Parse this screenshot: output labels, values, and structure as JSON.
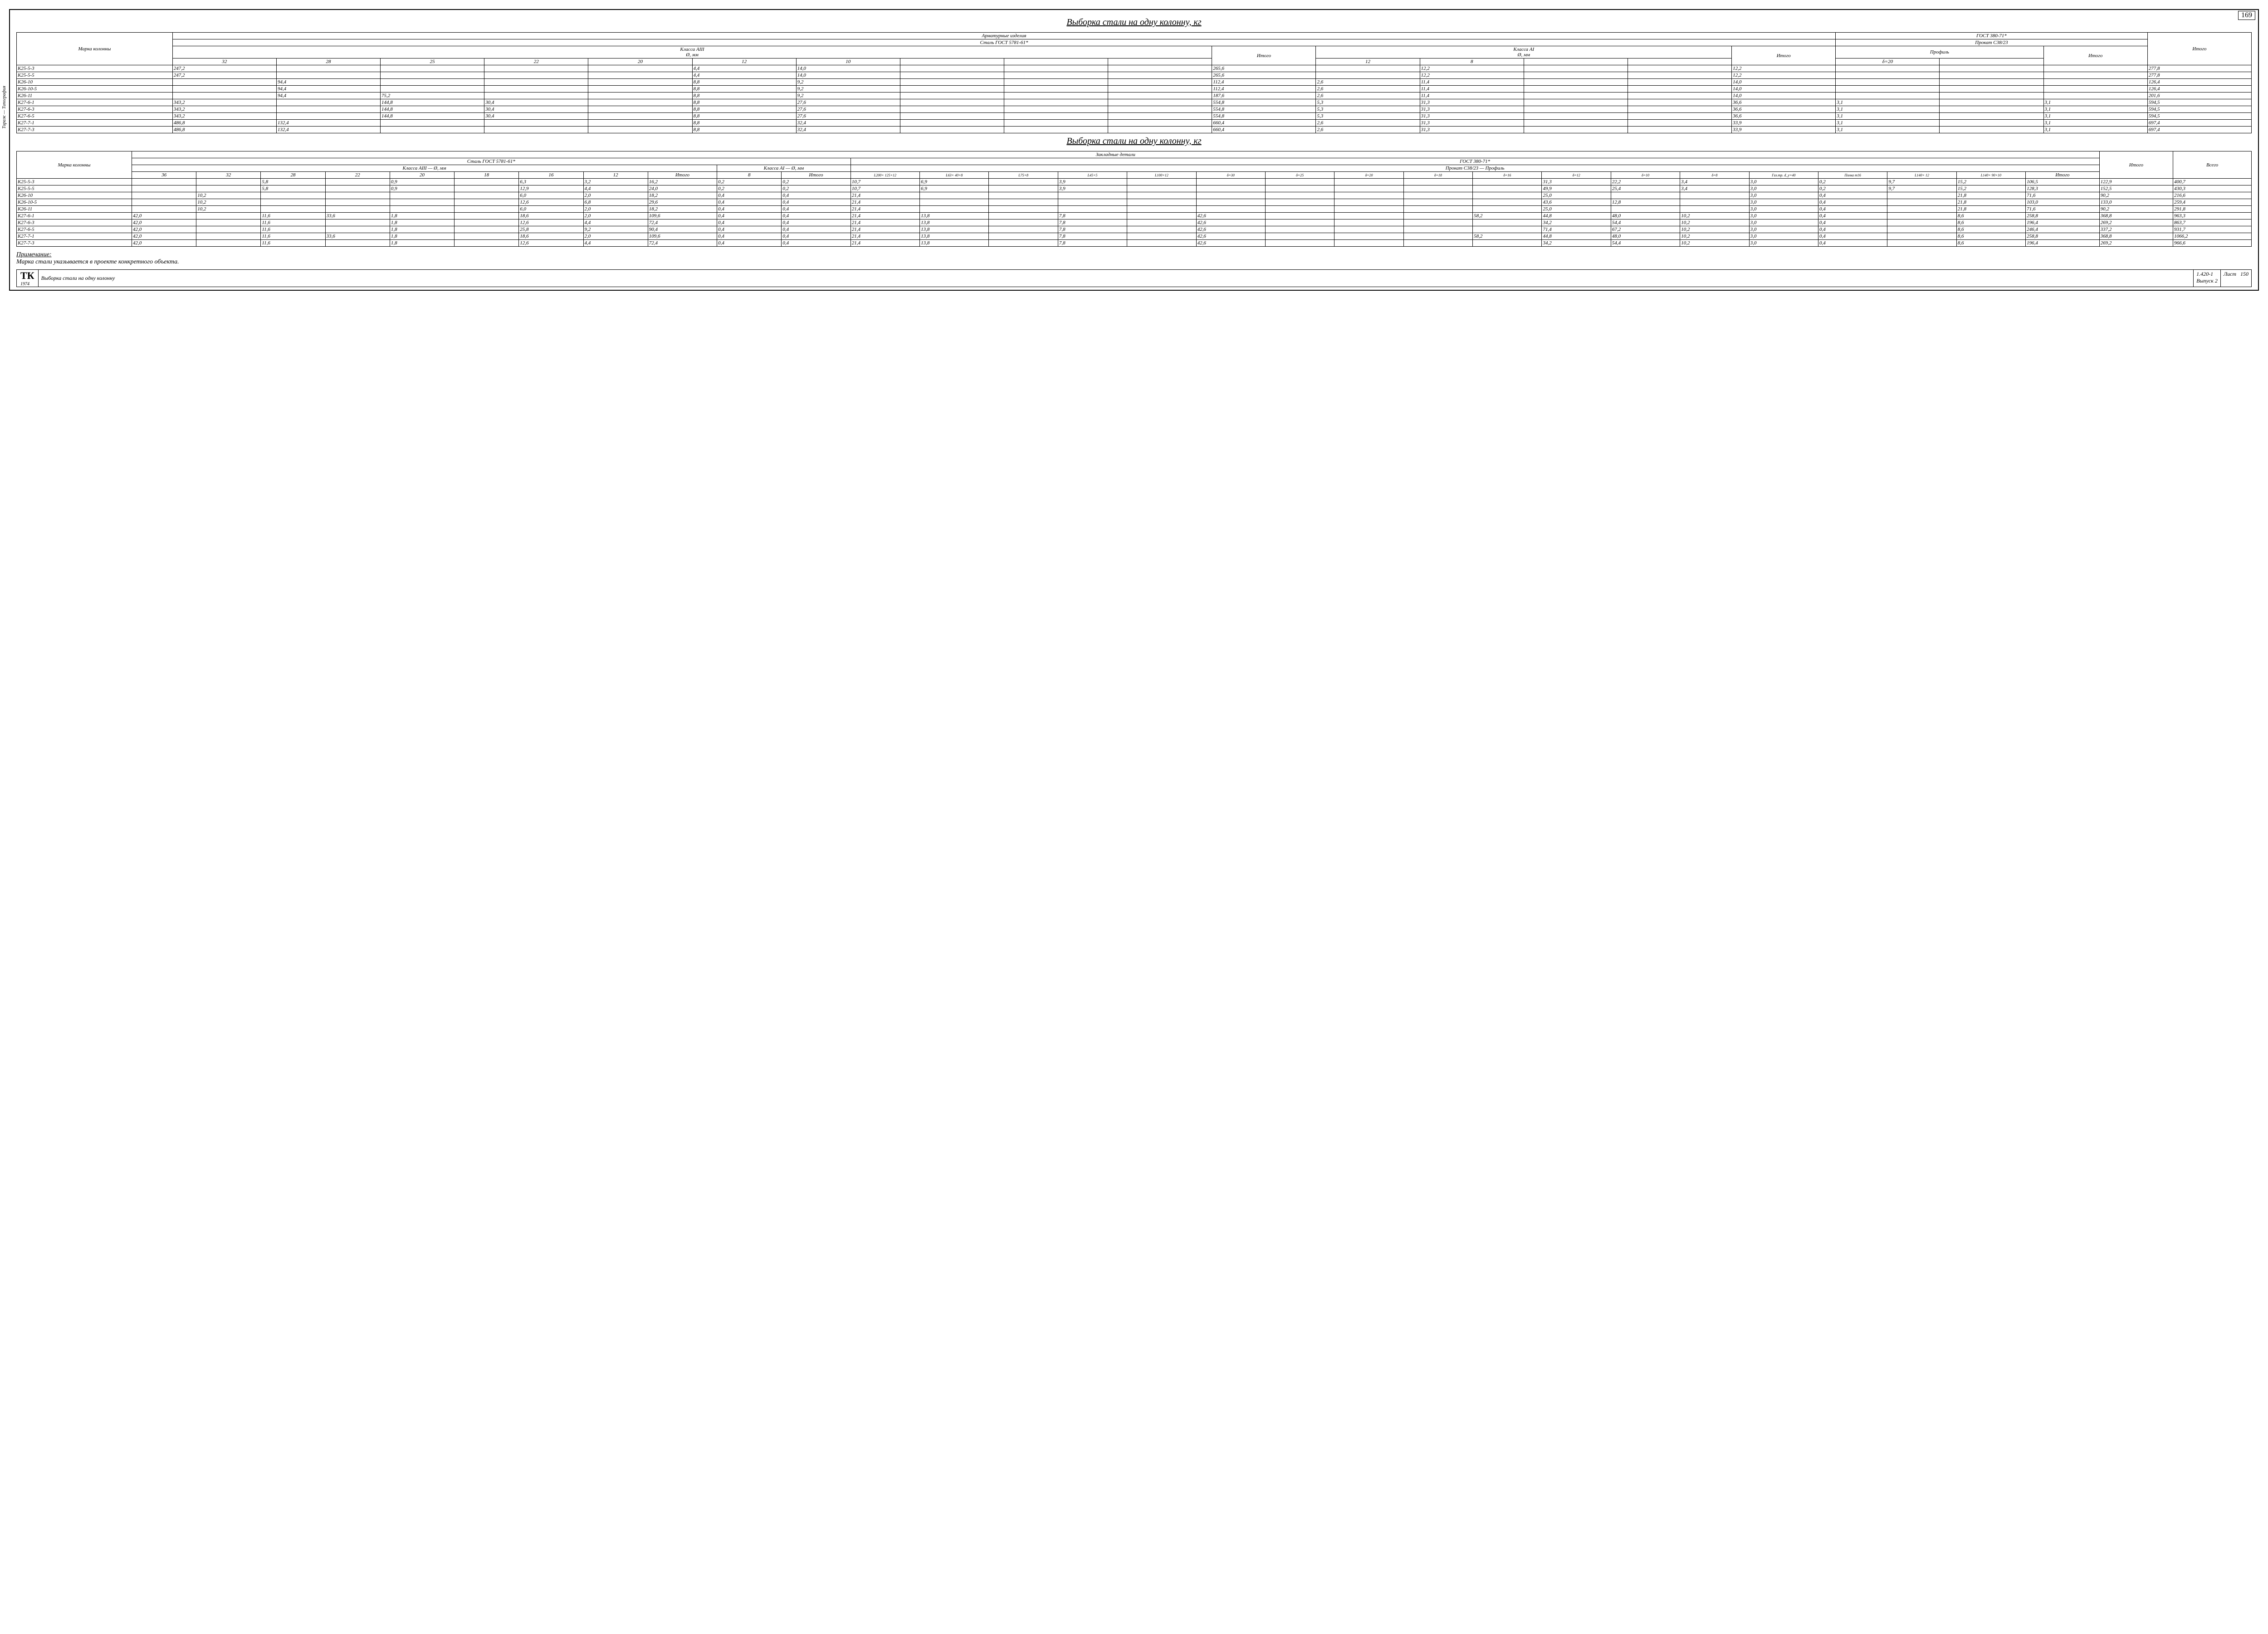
{
  "page_number": "169",
  "title1": "Выборка стали на одну колонну, кг",
  "title2": "Выборка стали на одну колонну, кг",
  "side_label": "Тираж — Типография",
  "table1": {
    "hdr_main": "Арматурные изделия",
    "hdr_steel": "Сталь ГОСТ 5781-61*",
    "hdr_g380": "ГОСТ 380-71*",
    "hdr_itogo_all": "Итого",
    "hdr_class_a3": "Класса АIII",
    "hdr_class_a1": "Класса АI",
    "hdr_prokat": "Прокат С38/23",
    "hdr_col_marka": "Марка колонны",
    "hdr_diam": "Ø, мм",
    "hdr_profil": "Профиль",
    "hdr_itogo": "Итого",
    "a3_cols": [
      "32",
      "28",
      "25",
      "22",
      "20",
      "12",
      "10",
      "",
      "",
      ""
    ],
    "a1_cols": [
      "12",
      "8",
      "",
      ""
    ],
    "prof_cols": [
      "δ=20",
      ""
    ],
    "rows": [
      {
        "m": "К25-5-3",
        "a3": [
          "247,2",
          "",
          "",
          "",
          "",
          "4,4",
          "14,0",
          "",
          "",
          ""
        ],
        "a3t": "265,6",
        "a1": [
          "",
          "12,2",
          "",
          ""
        ],
        "a1t": "12,2",
        "pr": [
          "",
          ""
        ],
        "prt": "",
        "tot": "277,8"
      },
      {
        "m": "К25-5-5",
        "a3": [
          "247,2",
          "",
          "",
          "",
          "",
          "4,4",
          "14,0",
          "",
          "",
          ""
        ],
        "a3t": "265,6",
        "a1": [
          "",
          "12,2",
          "",
          ""
        ],
        "a1t": "12,2",
        "pr": [
          "",
          ""
        ],
        "prt": "",
        "tot": "277,8"
      },
      {
        "m": "К26-10",
        "a3": [
          "",
          "94,4",
          "",
          "",
          "",
          "8,8",
          "9,2",
          "",
          "",
          ""
        ],
        "a3t": "112,4",
        "a1": [
          "2,6",
          "11,4",
          "",
          ""
        ],
        "a1t": "14,0",
        "pr": [
          "",
          ""
        ],
        "prt": "",
        "tot": "126,4"
      },
      {
        "m": "К26-10-5",
        "a3": [
          "",
          "94,4",
          "",
          "",
          "",
          "8,8",
          "9,2",
          "",
          "",
          ""
        ],
        "a3t": "112,4",
        "a1": [
          "2,6",
          "11,4",
          "",
          ""
        ],
        "a1t": "14,0",
        "pr": [
          "",
          ""
        ],
        "prt": "",
        "tot": "126,4"
      },
      {
        "m": "К26-11",
        "a3": [
          "",
          "94,4",
          "75,2",
          "",
          "",
          "8,8",
          "9,2",
          "",
          "",
          ""
        ],
        "a3t": "187,6",
        "a1": [
          "2,6",
          "11,4",
          "",
          ""
        ],
        "a1t": "14,0",
        "pr": [
          "",
          ""
        ],
        "prt": "",
        "tot": "201,6"
      },
      {
        "m": "К27-6-1",
        "a3": [
          "343,2",
          "",
          "144,8",
          "30,4",
          "",
          "8,8",
          "27,6",
          "",
          "",
          ""
        ],
        "a3t": "554,8",
        "a1": [
          "5,3",
          "31,3",
          "",
          ""
        ],
        "a1t": "36,6",
        "pr": [
          "3,1",
          ""
        ],
        "prt": "3,1",
        "tot": "594,5"
      },
      {
        "m": "К27-6-3",
        "a3": [
          "343,2",
          "",
          "144,8",
          "30,4",
          "",
          "8,8",
          "27,6",
          "",
          "",
          ""
        ],
        "a3t": "554,8",
        "a1": [
          "5,3",
          "31,3",
          "",
          ""
        ],
        "a1t": "36,6",
        "pr": [
          "3,1",
          ""
        ],
        "prt": "3,1",
        "tot": "594,5"
      },
      {
        "m": "К27-6-5",
        "a3": [
          "343,2",
          "",
          "144,8",
          "30,4",
          "",
          "8,8",
          "27,6",
          "",
          "",
          ""
        ],
        "a3t": "554,8",
        "a1": [
          "5,3",
          "31,3",
          "",
          ""
        ],
        "a1t": "36,6",
        "pr": [
          "3,1",
          ""
        ],
        "prt": "3,1",
        "tot": "594,5"
      },
      {
        "m": "К27-7-1",
        "a3": [
          "486,8",
          "132,4",
          "",
          "",
          "",
          "8,8",
          "32,4",
          "",
          "",
          ""
        ],
        "a3t": "660,4",
        "a1": [
          "2,6",
          "31,3",
          "",
          ""
        ],
        "a1t": "33,9",
        "pr": [
          "3,1",
          ""
        ],
        "prt": "3,1",
        "tot": "697,4"
      },
      {
        "m": "К27-7-3",
        "a3": [
          "486,8",
          "132,4",
          "",
          "",
          "",
          "8,8",
          "32,4",
          "",
          "",
          ""
        ],
        "a3t": "660,4",
        "a1": [
          "2,6",
          "31,3",
          "",
          ""
        ],
        "a1t": "33,9",
        "pr": [
          "3,1",
          ""
        ],
        "prt": "3,1",
        "tot": "697,4"
      }
    ]
  },
  "table2": {
    "hdr_main": "Закладные детали",
    "hdr_steel": "Сталь ГОСТ 5781-61*",
    "hdr_g380": "ГОСТ 380-71*",
    "hdr_class_a3": "Класса АIII",
    "hdr_class_a1": "Класса АI",
    "hdr_prokat": "Прокат С38/23",
    "hdr_col_marka": "Марка колонны",
    "hdr_diam": "Ø, мм",
    "hdr_profil": "Профиль",
    "hdr_itogo": "Итого",
    "hdr_vsego": "Всего",
    "a3_cols": [
      "36",
      "32",
      "28",
      "22",
      "20",
      "18",
      "16",
      "12"
    ],
    "a1_cols": [
      "8"
    ],
    "prof_cols": [
      "L200× 125×12",
      "L63× 40×8",
      "L75×8",
      "L45×5",
      "L100×12",
      "δ=30",
      "δ=25",
      "δ=20",
      "δ=18",
      "δ=16",
      "δ=12",
      "δ=10",
      "δ=8",
      "Газ.тр. d_у=40",
      "Полка m16",
      "L140× 12",
      "L140× 90×10"
    ],
    "rows": [
      {
        "m": "К25-5-3",
        "a3": [
          "",
          "",
          "5,8",
          "",
          "0,9",
          "",
          "6,3",
          "3,2"
        ],
        "a3t": "16,2",
        "a1": [
          "0,2"
        ],
        "a1t": "0,2",
        "pr": [
          "10,7",
          "6,9",
          "",
          "3,9",
          "",
          "",
          "",
          "",
          "",
          "",
          "31,3",
          "22,2",
          "3,4",
          "3,0",
          "0,2",
          "9,7",
          "15,2"
        ],
        "prt": "106,5",
        "it": "122,9",
        "tot": "400,7"
      },
      {
        "m": "К25-5-5",
        "a3": [
          "",
          "",
          "5,8",
          "",
          "0,9",
          "",
          "12,9",
          "4,4"
        ],
        "a3t": "24,0",
        "a1": [
          "0,2"
        ],
        "a1t": "0,2",
        "pr": [
          "10,7",
          "6,9",
          "",
          "3,9",
          "",
          "",
          "",
          "",
          "",
          "",
          "49,9",
          "25,4",
          "3,4",
          "3,0",
          "0,2",
          "9,7",
          "15,2"
        ],
        "prt": "128,3",
        "it": "152,5",
        "tot": "430,3"
      },
      {
        "m": "К26-10",
        "a3": [
          "",
          "10,2",
          "",
          "",
          "",
          "",
          "6,0",
          "2,0"
        ],
        "a3t": "18,2",
        "a1": [
          "0,4"
        ],
        "a1t": "0,4",
        "pr": [
          "21,4",
          "",
          "",
          "",
          "",
          "",
          "",
          "",
          "",
          "",
          "25,0",
          "",
          "",
          "3,0",
          "0,4",
          "",
          "21,8"
        ],
        "prt": "71,6",
        "it": "90,2",
        "tot": "216,6"
      },
      {
        "m": "К26-10-5",
        "a3": [
          "",
          "10,2",
          "",
          "",
          "",
          "",
          "12,6",
          "6,8"
        ],
        "a3t": "29,6",
        "a1": [
          "0,4"
        ],
        "a1t": "0,4",
        "pr": [
          "21,4",
          "",
          "",
          "",
          "",
          "",
          "",
          "",
          "",
          "",
          "43,6",
          "12,8",
          "",
          "3,0",
          "0,4",
          "",
          "21,8"
        ],
        "prt": "103,0",
        "it": "133,0",
        "tot": "259,4"
      },
      {
        "m": "К26-11",
        "a3": [
          "",
          "10,2",
          "",
          "",
          "",
          "",
          "6,0",
          "2,0"
        ],
        "a3t": "18,2",
        "a1": [
          "0,4"
        ],
        "a1t": "0,4",
        "pr": [
          "21,4",
          "",
          "",
          "",
          "",
          "",
          "",
          "",
          "",
          "",
          "25,0",
          "",
          "",
          "3,0",
          "0,4",
          "",
          "21,8"
        ],
        "prt": "71,6",
        "it": "90,2",
        "tot": "291,8"
      },
      {
        "m": "К27-6-1",
        "a3": [
          "42,0",
          "",
          "11,6",
          "33,6",
          "1,8",
          "",
          "18,6",
          "2,0"
        ],
        "a3t": "109,6",
        "a1": [
          "0,4"
        ],
        "a1t": "0,4",
        "pr": [
          "21,4",
          "13,8",
          "",
          "7,8",
          "",
          "42,6",
          "",
          "",
          "",
          "58,2",
          "44,8",
          "48,0",
          "10,2",
          "3,0",
          "0,4",
          "",
          "8,6"
        ],
        "prt": "258,8",
        "it": "368,8",
        "tot": "963,3"
      },
      {
        "m": "К27-6-3",
        "a3": [
          "42,0",
          "",
          "11,6",
          "",
          "1,8",
          "",
          "12,6",
          "4,4"
        ],
        "a3t": "72,4",
        "a1": [
          "0,4"
        ],
        "a1t": "0,4",
        "pr": [
          "21,4",
          "13,8",
          "",
          "7,8",
          "",
          "42,6",
          "",
          "",
          "",
          "",
          "34,2",
          "54,4",
          "10,2",
          "3,0",
          "0,4",
          "",
          "8,6"
        ],
        "prt": "196,4",
        "it": "269,2",
        "tot": "863,7"
      },
      {
        "m": "К27-6-5",
        "a3": [
          "42,0",
          "",
          "11,6",
          "",
          "1,8",
          "",
          "25,8",
          "9,2"
        ],
        "a3t": "90,4",
        "a1": [
          "0,4"
        ],
        "a1t": "0,4",
        "pr": [
          "21,4",
          "13,8",
          "",
          "7,8",
          "",
          "42,6",
          "",
          "",
          "",
          "",
          "71,4",
          "67,2",
          "10,2",
          "3,0",
          "0,4",
          "",
          "8,6"
        ],
        "prt": "246,4",
        "it": "337,2",
        "tot": "931,7"
      },
      {
        "m": "К27-7-1",
        "a3": [
          "42,0",
          "",
          "11,6",
          "33,6",
          "1,8",
          "",
          "18,6",
          "2,0"
        ],
        "a3t": "109,6",
        "a1": [
          "0,4"
        ],
        "a1t": "0,4",
        "pr": [
          "21,4",
          "13,8",
          "",
          "7,8",
          "",
          "42,6",
          "",
          "",
          "",
          "58,2",
          "44,8",
          "48,0",
          "10,2",
          "3,0",
          "0,4",
          "",
          "8,6"
        ],
        "prt": "258,8",
        "it": "368,8",
        "tot": "1066,2"
      },
      {
        "m": "К27-7-3",
        "a3": [
          "42,0",
          "",
          "11,6",
          "",
          "1,8",
          "",
          "12,6",
          "4,4"
        ],
        "a3t": "72,4",
        "a1": [
          "0,4"
        ],
        "a1t": "0,4",
        "pr": [
          "21,4",
          "13,8",
          "",
          "7,8",
          "",
          "42,6",
          "",
          "",
          "",
          "",
          "34,2",
          "54,4",
          "10,2",
          "3,0",
          "0,4",
          "",
          "8,6"
        ],
        "prt": "196,4",
        "it": "269,2",
        "tot": "966,6"
      }
    ]
  },
  "note_title": "Примечание:",
  "note_body": "Марка стали указывается в проекте конкретного объекта.",
  "stamp": {
    "tk": "ТК",
    "tk_year": "1974",
    "desc": "Выборка стали на одну колонну",
    "series": "1.420-1",
    "issue": "Выпуск 2",
    "list_lbl": "Лист",
    "list_no": "150"
  }
}
